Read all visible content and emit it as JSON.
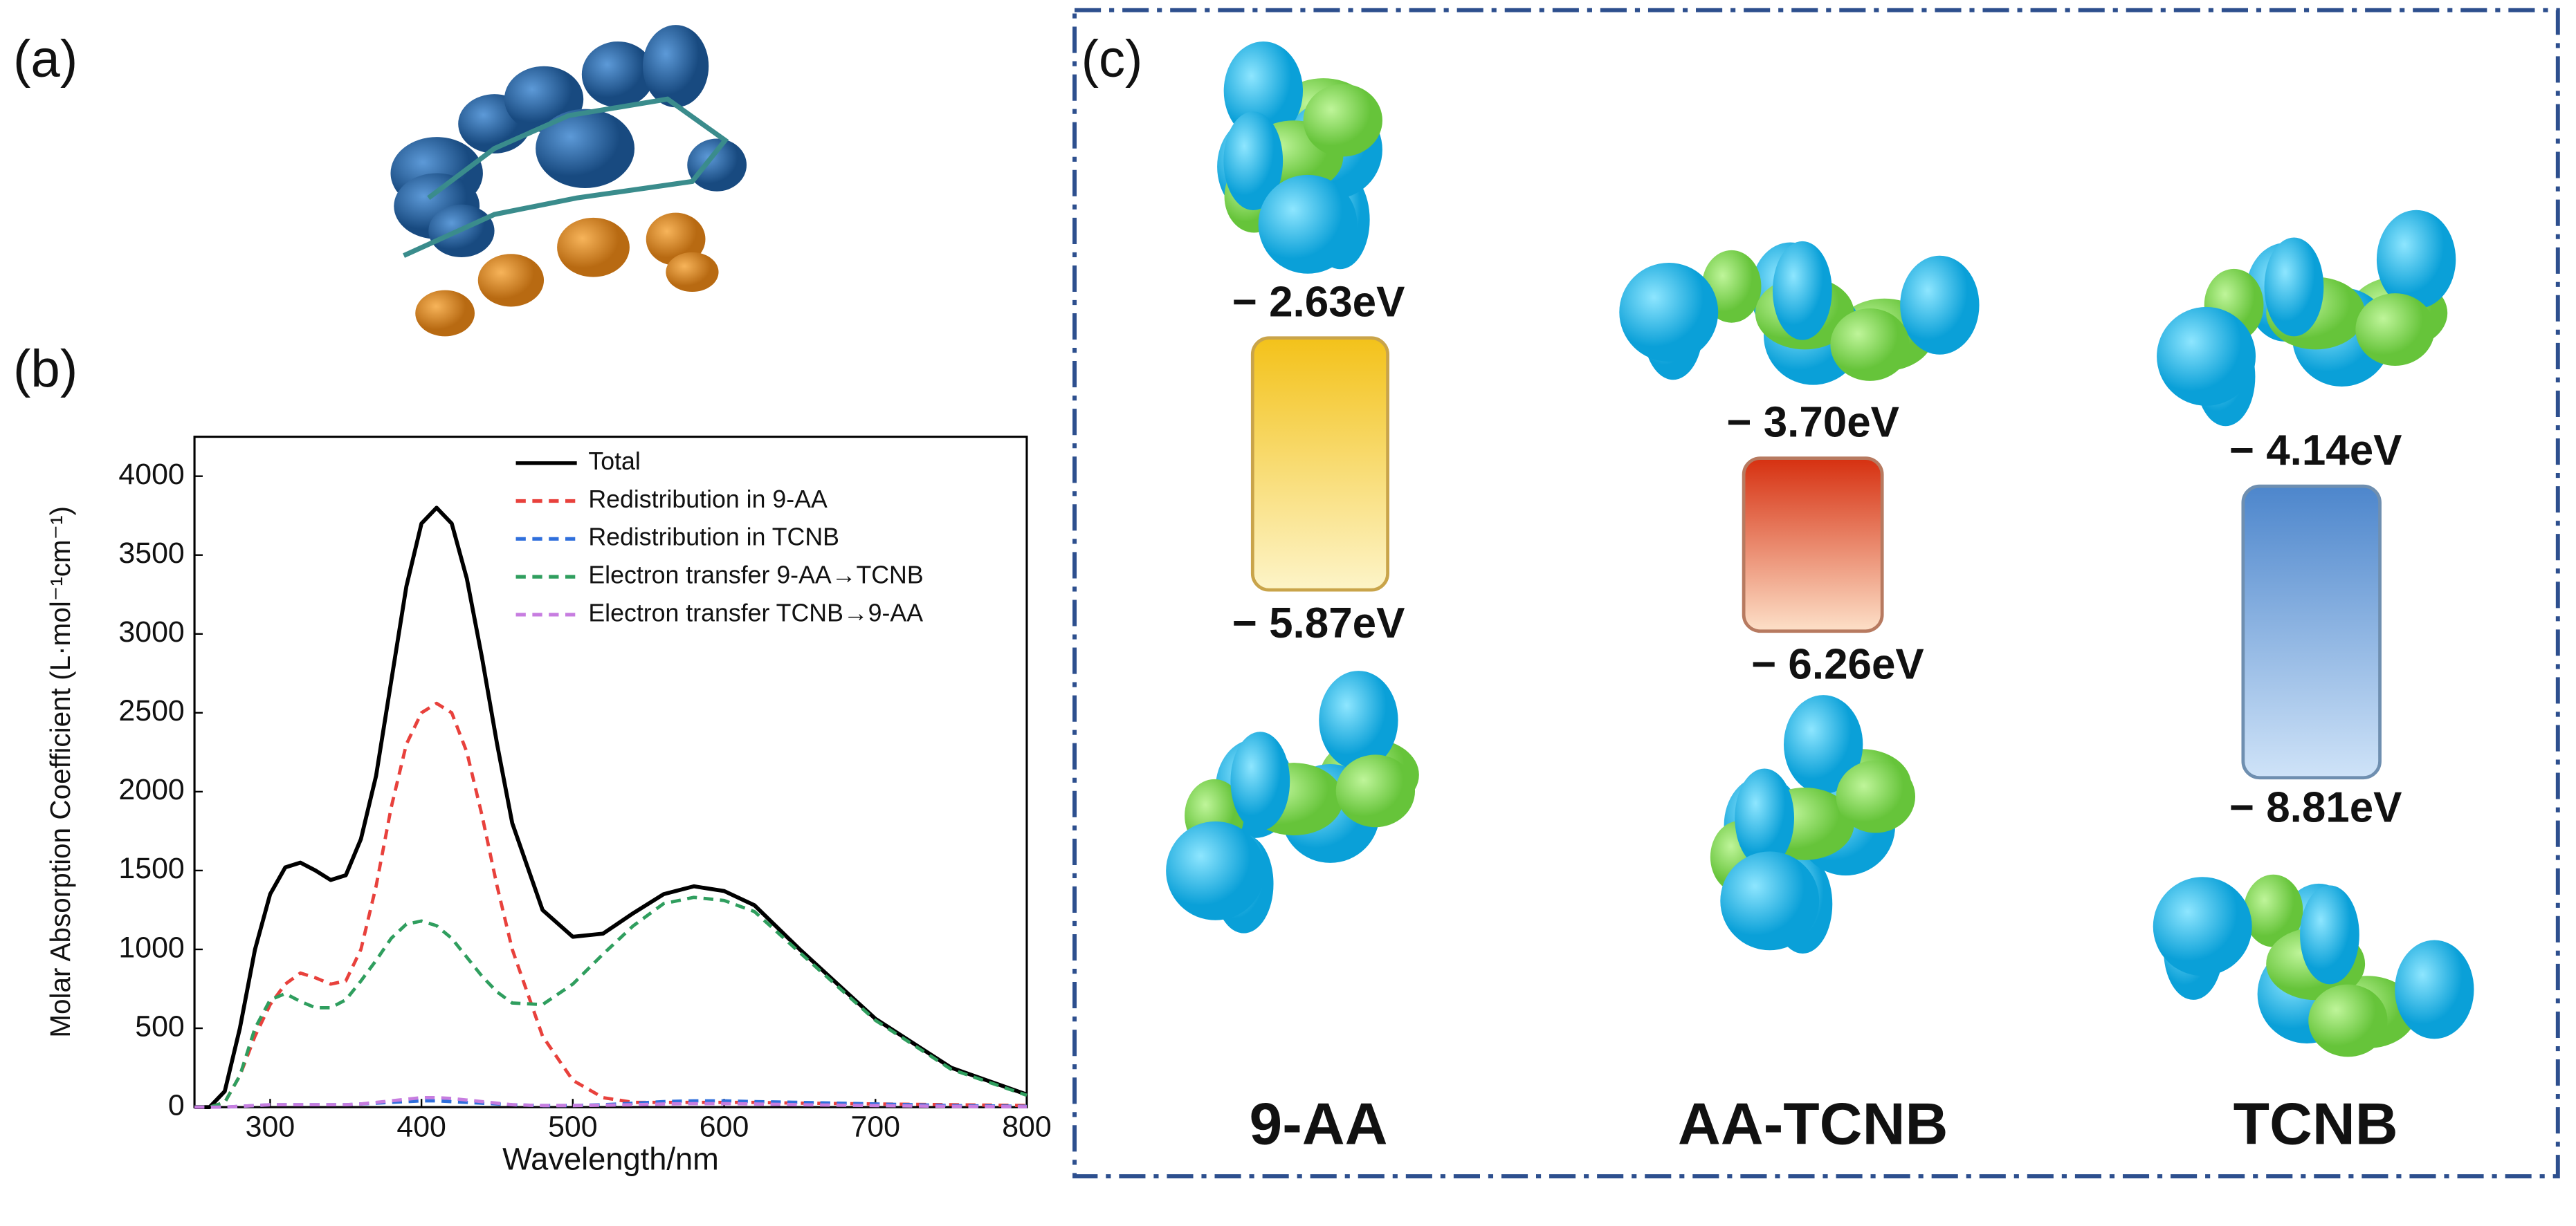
{
  "chart_data": {
    "type": "line",
    "x_label": "Wavelength/nm",
    "y_label": "Molar Absorption Coefficient (L·mol⁻¹cm⁻¹)",
    "x": [
      250,
      260,
      270,
      280,
      290,
      300,
      310,
      320,
      330,
      340,
      350,
      360,
      370,
      380,
      390,
      400,
      410,
      420,
      430,
      440,
      450,
      460,
      480,
      500,
      520,
      540,
      560,
      580,
      600,
      620,
      650,
      700,
      750,
      800
    ],
    "series": [
      {
        "name": "Total",
        "color": "#000000",
        "style": "solid",
        "values": [
          0,
          0,
          100,
          500,
          1000,
          1350,
          1520,
          1550,
          1500,
          1440,
          1470,
          1700,
          2100,
          2700,
          3300,
          3700,
          3800,
          3700,
          3350,
          2850,
          2300,
          1800,
          1250,
          1080,
          1100,
          1230,
          1350,
          1400,
          1370,
          1280,
          1000,
          560,
          250,
          80
        ]
      },
      {
        "name": "Redistribution in 9-AA",
        "color": "#e8413c",
        "style": "dashed",
        "values": [
          0,
          0,
          30,
          200,
          450,
          650,
          780,
          850,
          820,
          780,
          800,
          1000,
          1400,
          1900,
          2300,
          2500,
          2560,
          2500,
          2250,
          1850,
          1400,
          1000,
          450,
          170,
          60,
          30,
          30,
          30,
          30,
          30,
          25,
          20,
          15,
          10
        ]
      },
      {
        "name": "Redistribution in TCNB",
        "color": "#2f6fdc",
        "style": "dashed",
        "values": [
          0,
          0,
          0,
          5,
          10,
          15,
          15,
          15,
          15,
          15,
          15,
          20,
          25,
          30,
          35,
          40,
          40,
          35,
          30,
          25,
          20,
          15,
          10,
          10,
          15,
          25,
          35,
          40,
          40,
          35,
          30,
          20,
          10,
          5
        ]
      },
      {
        "name": "Electron transfer 9-AA→TCNB",
        "color": "#2f9e5e",
        "style": "dashed",
        "values": [
          0,
          0,
          30,
          200,
          500,
          680,
          720,
          670,
          630,
          630,
          680,
          800,
          930,
          1070,
          1160,
          1180,
          1150,
          1070,
          950,
          830,
          730,
          660,
          650,
          780,
          970,
          1150,
          1290,
          1330,
          1310,
          1240,
          980,
          550,
          240,
          75
        ]
      },
      {
        "name": "Electron transfer TCNB→9-AA",
        "color": "#c77de0",
        "style": "dashed",
        "values": [
          0,
          0,
          0,
          5,
          10,
          15,
          15,
          15,
          15,
          15,
          15,
          20,
          30,
          40,
          50,
          60,
          60,
          55,
          45,
          35,
          25,
          15,
          10,
          10,
          12,
          15,
          20,
          22,
          22,
          20,
          15,
          10,
          5,
          2
        ]
      }
    ],
    "xlim": [
      250,
      800
    ],
    "xticks": [
      300,
      400,
      500,
      600,
      700,
      800
    ],
    "ylim": [
      0,
      4250
    ],
    "yticks": [
      0,
      500,
      1000,
      1500,
      2000,
      2500,
      3000,
      3500,
      4000
    ],
    "legend": "top-right"
  },
  "panel_labels": [
    "(a)",
    "(b)",
    "(c)"
  ],
  "orbitals": [
    {
      "name": "9-AA",
      "lumo": "− 2.63eV",
      "homo": "− 5.87eV"
    },
    {
      "name": "AA-TCNB",
      "lumo": "− 3.70eV",
      "homo": "− 6.26eV"
    },
    {
      "name": "TCNB",
      "lumo": "− 4.14eV",
      "homo": "− 8.81eV"
    }
  ]
}
